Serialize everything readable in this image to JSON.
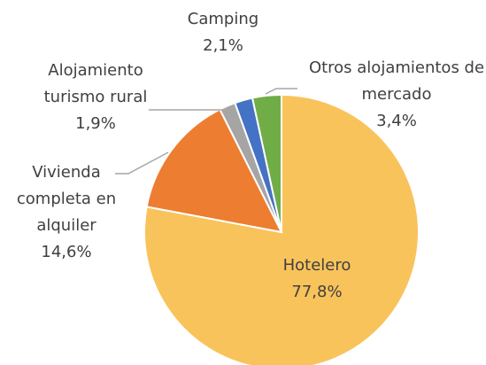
{
  "chart_data": {
    "type": "pie",
    "categories": [
      "Hotelero",
      "Vivienda completa en alquiler",
      "Alojamiento turismo rural",
      "Camping",
      "Otros alojamientos de mercado"
    ],
    "values": [
      77.8,
      14.6,
      1.9,
      2.1,
      3.4
    ],
    "value_labels": [
      "77,8%",
      "14,6%",
      "1,9%",
      "2,1%",
      "3,4%"
    ],
    "colors": [
      "#F9C35B",
      "#ED7D31",
      "#A5A5A5",
      "#4472C4",
      "#70AD47"
    ]
  }
}
